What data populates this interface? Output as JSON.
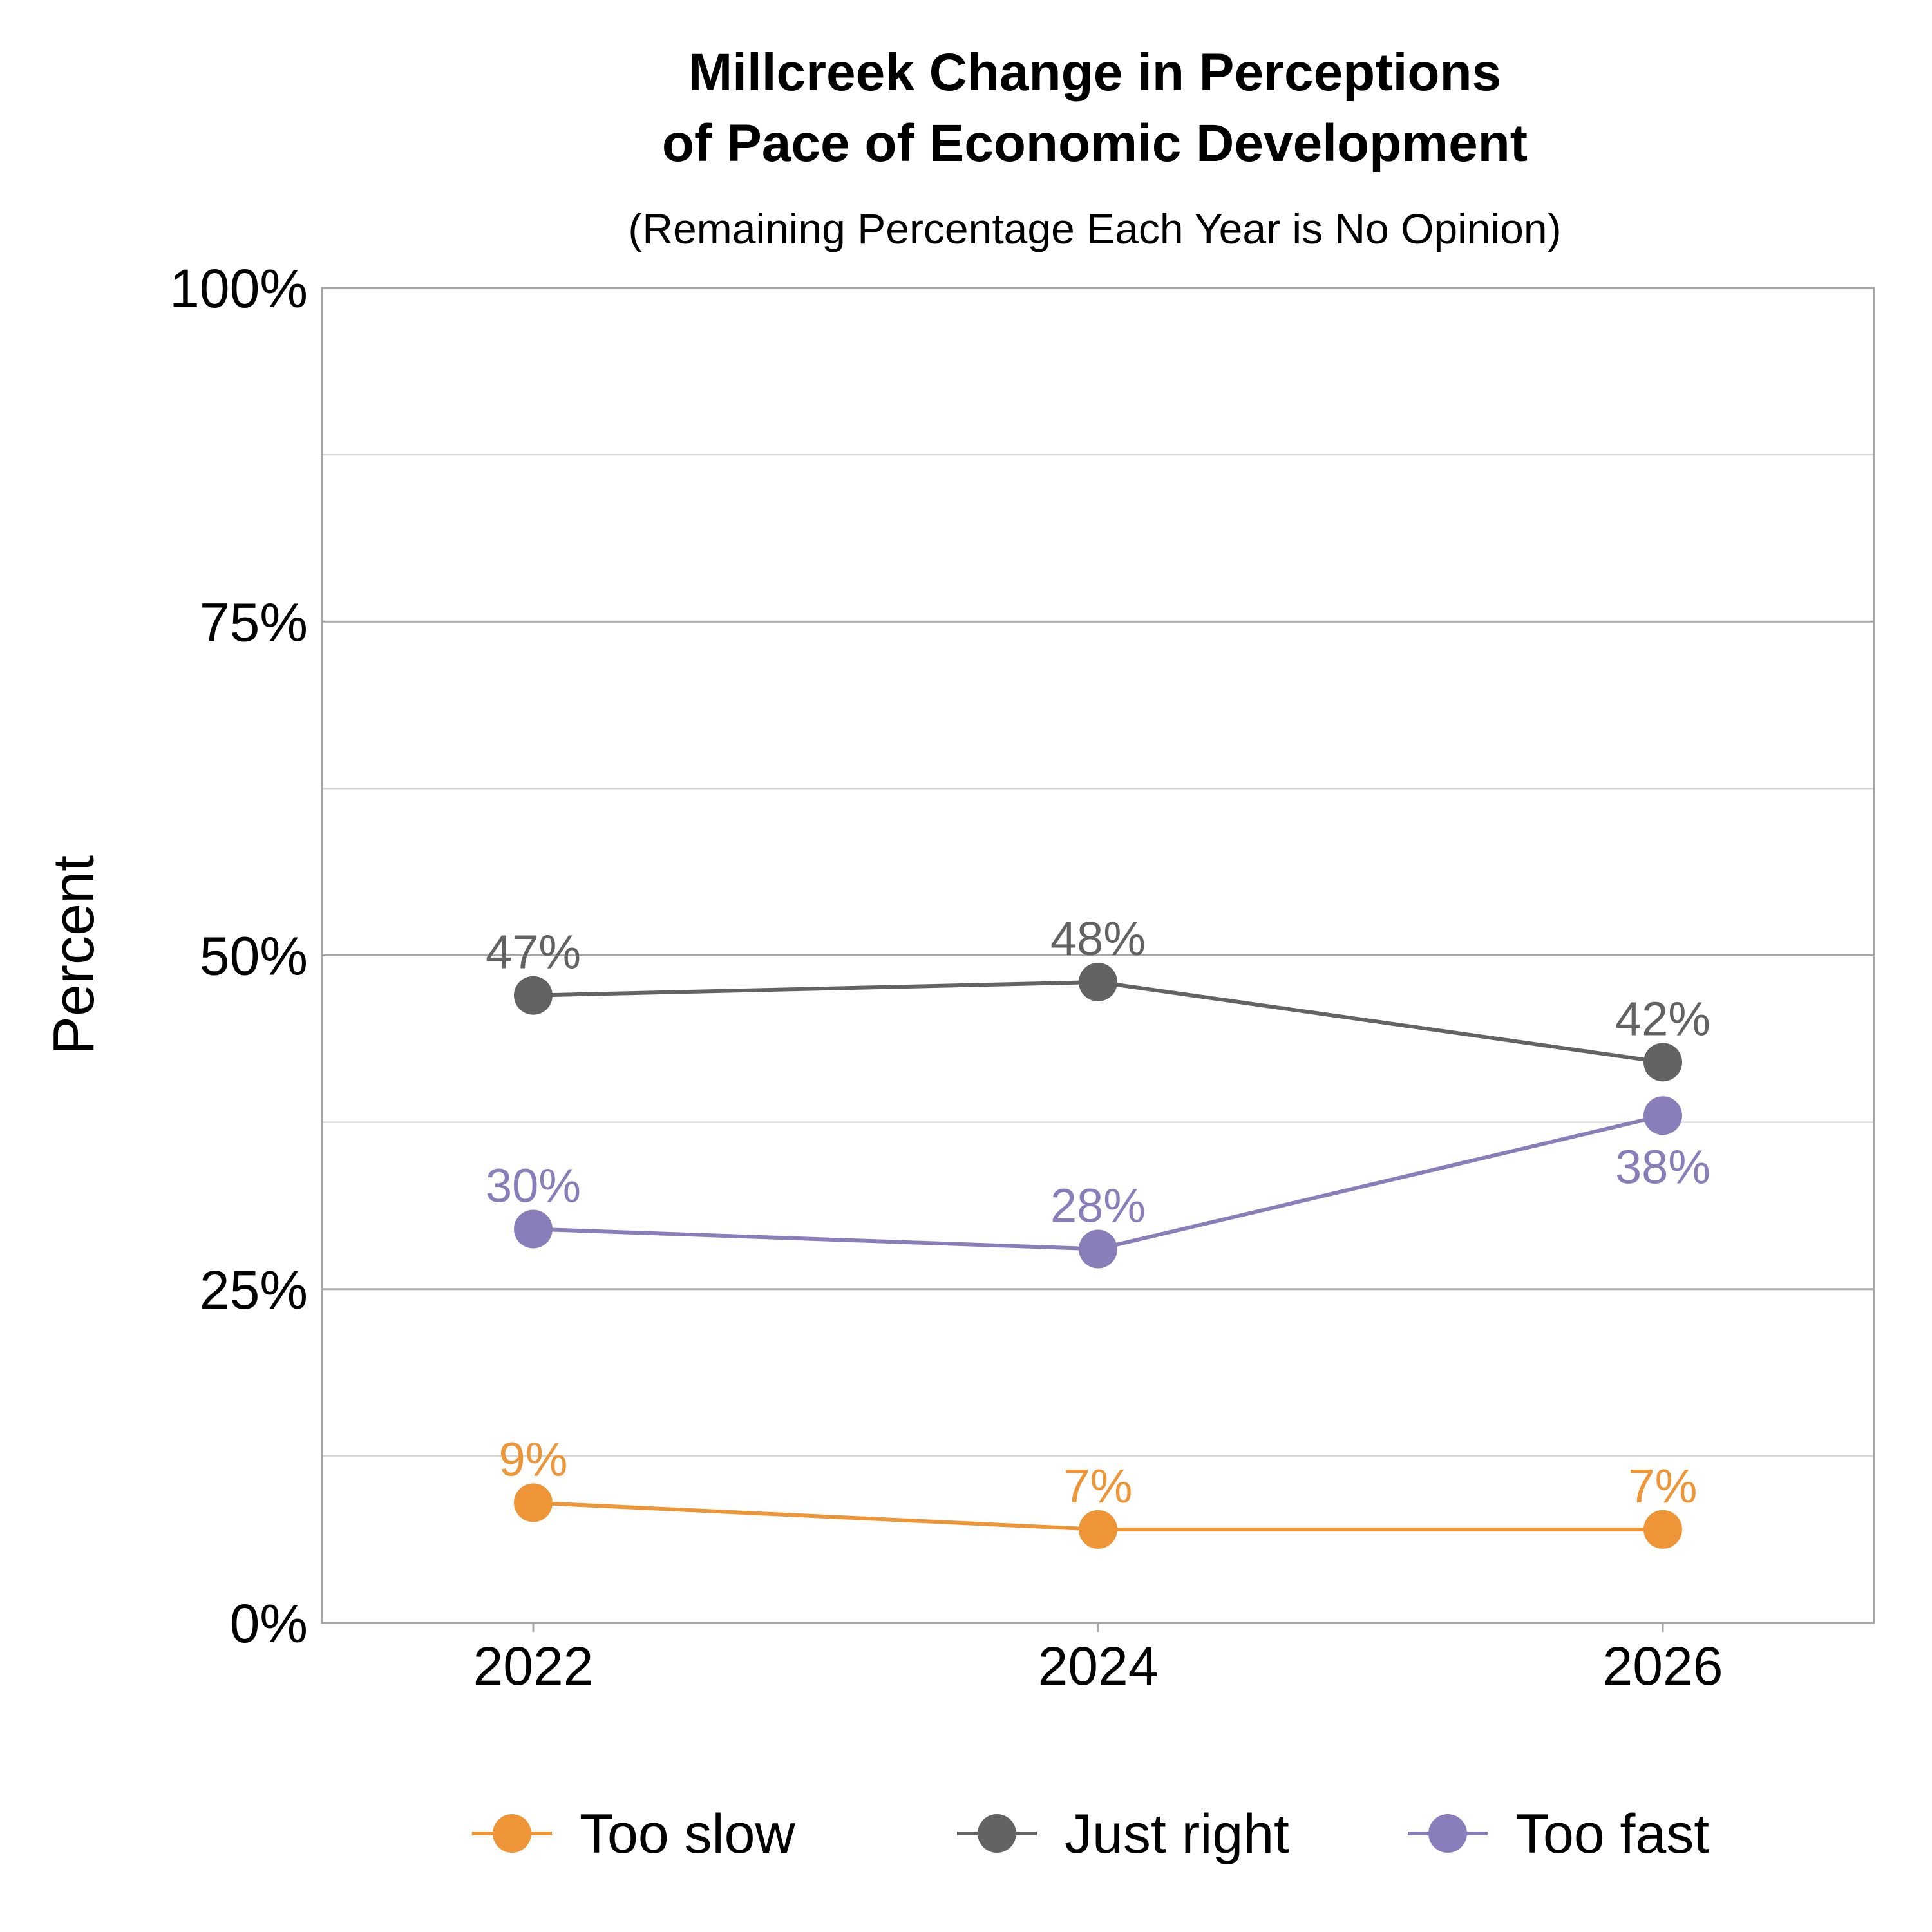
{
  "chart_data": {
    "type": "line",
    "title_line1": "Millcreek Change in Perceptions",
    "title_line2": "of Pace of Economic Development",
    "subtitle": "(Remaining Percentage Each Year is No Opinion)",
    "ylabel": "Percent",
    "xlabel": "",
    "categories": [
      "2022",
      "2024",
      "2026"
    ],
    "ylim": [
      0,
      100
    ],
    "yticks": [
      0,
      25,
      50,
      75,
      100
    ],
    "ytick_labels": [
      "0%",
      "25%",
      "50%",
      "75%",
      "100%"
    ],
    "minor_gridlines": [
      12.5,
      37.5,
      62.5,
      87.5
    ],
    "grid": true,
    "legend_position": "bottom",
    "series": [
      {
        "name": "Too slow",
        "color": "#EE9637",
        "values": [
          9,
          7,
          7
        ],
        "labels": [
          "9%",
          "7%",
          "7%"
        ],
        "label_side": [
          "above",
          "above",
          "above"
        ]
      },
      {
        "name": "Just right",
        "color": "#636363",
        "values": [
          47,
          48,
          42
        ],
        "labels": [
          "47%",
          "48%",
          "42%"
        ],
        "label_side": [
          "above",
          "above",
          "above"
        ]
      },
      {
        "name": "Too fast",
        "color": "#8A7EBA",
        "values": [
          29.5,
          28,
          38
        ],
        "labels": [
          "30%",
          "28%",
          "38%"
        ],
        "label_side": [
          "above",
          "above",
          "below"
        ]
      }
    ]
  }
}
